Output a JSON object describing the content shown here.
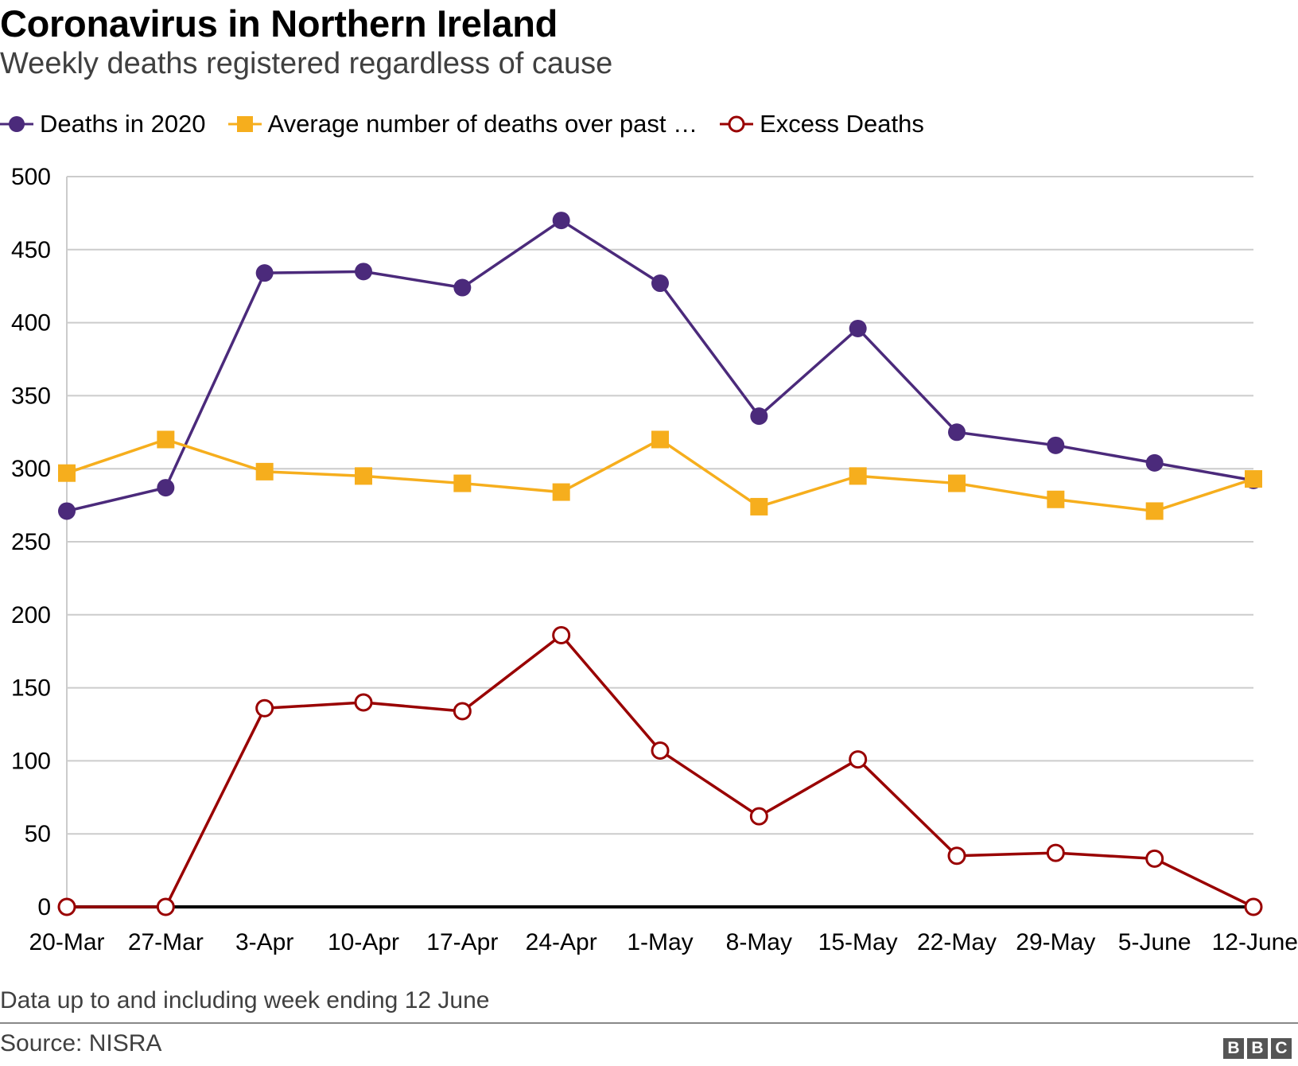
{
  "header": {
    "title": "Coronavirus in Northern Ireland",
    "subtitle": "Weekly deaths registered regardless of cause"
  },
  "legend": {
    "items": [
      {
        "label": "Deaths in 2020",
        "color": "#4b2a7b",
        "marker": "filled-circle"
      },
      {
        "label": "Average number of deaths over past …",
        "color": "#f6ae1d",
        "marker": "filled-square"
      },
      {
        "label": "Excess Deaths",
        "color": "#990000",
        "marker": "open-circle"
      }
    ]
  },
  "chart_data": {
    "type": "line",
    "categories": [
      "20-Mar",
      "27-Mar",
      "3-Apr",
      "10-Apr",
      "17-Apr",
      "24-Apr",
      "1-May",
      "8-May",
      "15-May",
      "22-May",
      "29-May",
      "5-June",
      "12-June"
    ],
    "series": [
      {
        "name": "Deaths in 2020",
        "color": "#4b2a7b",
        "marker": "filled-circle",
        "values": [
          271,
          287,
          434,
          435,
          424,
          470,
          427,
          336,
          396,
          325,
          316,
          304,
          292
        ]
      },
      {
        "name": "Average number of deaths over past …",
        "color": "#f6ae1d",
        "marker": "filled-square",
        "values": [
          297,
          320,
          298,
          295,
          290,
          284,
          320,
          274,
          295,
          290,
          279,
          271,
          293
        ]
      },
      {
        "name": "Excess Deaths",
        "color": "#990000",
        "marker": "open-circle",
        "values": [
          0,
          0,
          136,
          140,
          134,
          186,
          107,
          62,
          101,
          35,
          37,
          33,
          0
        ]
      }
    ],
    "ylim": [
      0,
      500
    ],
    "yticks": [
      0,
      50,
      100,
      150,
      200,
      250,
      300,
      350,
      400,
      450,
      500
    ],
    "grid": true,
    "legend_position": "top-left"
  },
  "footer": {
    "note": "Data up to and including week ending 12 June",
    "source": "Source: NISRA",
    "logo_letters": [
      "B",
      "B",
      "C"
    ]
  }
}
